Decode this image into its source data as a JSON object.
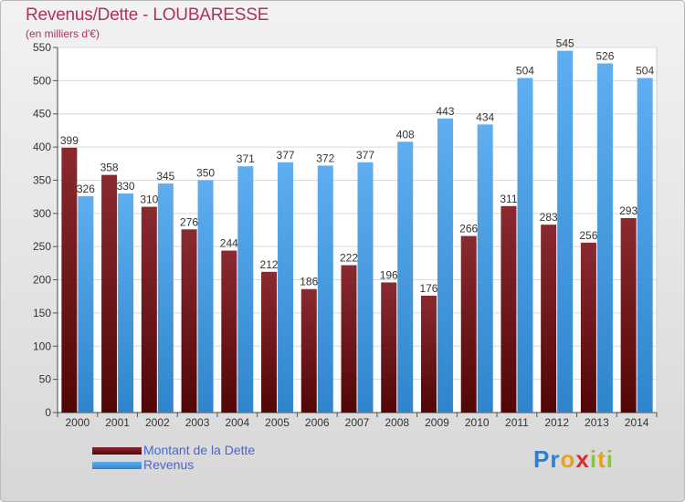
{
  "title": "Revenus/Dette - LOUBARESSE",
  "subtitle": "(en milliers d'€)",
  "brand": {
    "text": "Proxiti",
    "letter_colors": [
      "#2f7fd1",
      "#2f7fd1",
      "#e8a11e",
      "#dd2b2b",
      "#8bc34a",
      "#e8a11e",
      "#8bc34a"
    ]
  },
  "colors": {
    "dette": "#7a1e24",
    "revenus": "#4a9ee0",
    "axis_label": "#b0305e",
    "legend_text": "#4466dd"
  },
  "chart_data": {
    "type": "bar",
    "categories": [
      "2000",
      "2001",
      "2002",
      "2003",
      "2004",
      "2005",
      "2006",
      "2007",
      "2008",
      "2009",
      "2010",
      "2011",
      "2012",
      "2013",
      "2014"
    ],
    "series": [
      {
        "name": "Montant de la Dette",
        "values": [
          399,
          358,
          310,
          276,
          244,
          212,
          186,
          222,
          196,
          176,
          266,
          311,
          283,
          256,
          293
        ]
      },
      {
        "name": "Revenus",
        "values": [
          326,
          330,
          345,
          350,
          371,
          377,
          372,
          377,
          408,
          443,
          434,
          504,
          545,
          526,
          504
        ]
      }
    ],
    "ylim": [
      0,
      550
    ],
    "yticks": [
      0,
      50,
      100,
      150,
      200,
      250,
      300,
      350,
      400,
      450,
      500,
      550
    ],
    "grid": true,
    "legend_position": "bottom-left"
  }
}
